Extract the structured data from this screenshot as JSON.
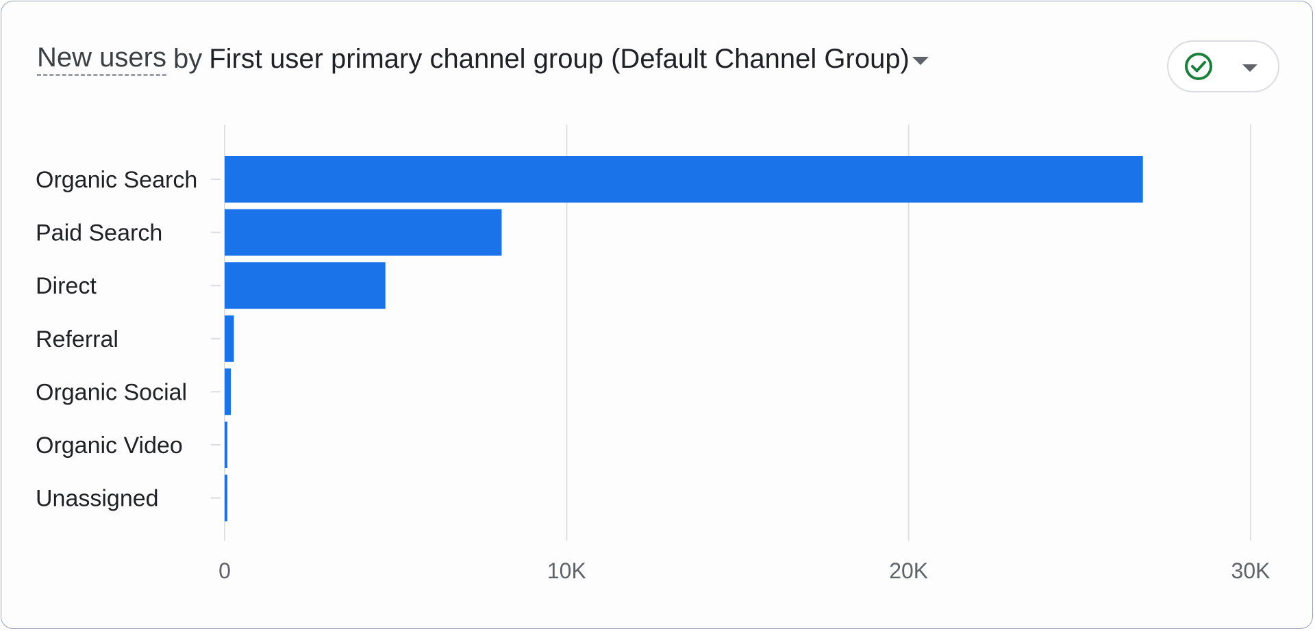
{
  "header": {
    "metric": "New users",
    "connector": "by",
    "dimension": "First user primary channel group (Default Channel Group)"
  },
  "icons": {
    "status": "check-circle-icon",
    "status_color": "#188038",
    "dropdown": "caret-down-icon"
  },
  "colors": {
    "bar": "#1a73e8",
    "grid": "#e0e0e0",
    "tick_text": "#5f6368",
    "category_text": "#202124"
  },
  "chart_data": {
    "type": "bar",
    "orientation": "horizontal",
    "categories": [
      "Organic Search",
      "Paid Search",
      "Direct",
      "Referral",
      "Organic Social",
      "Organic Video",
      "Unassigned"
    ],
    "values": [
      26850,
      8100,
      4700,
      270,
      180,
      60,
      50
    ],
    "xlim": [
      0,
      30000
    ],
    "xticks": [
      0,
      10000,
      20000,
      30000
    ],
    "xtick_labels": [
      "0",
      "10K",
      "20K",
      "30K"
    ],
    "grid": true,
    "legend": "none",
    "title": "",
    "xlabel": "",
    "ylabel": ""
  }
}
